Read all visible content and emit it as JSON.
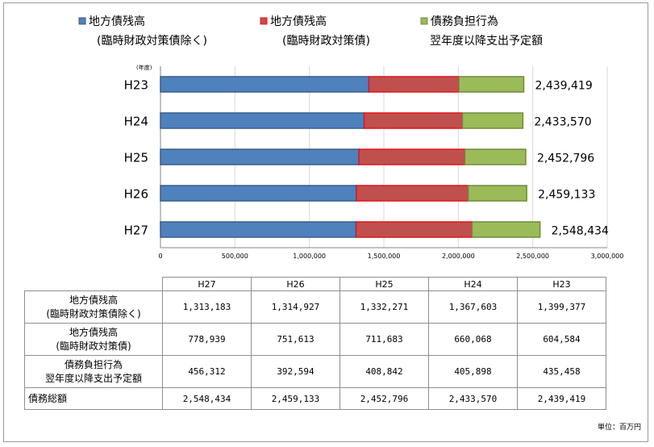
{
  "chart_data": {
    "type": "bar",
    "orientation": "horizontal",
    "stacked": true,
    "year_unit_label": "(年度)",
    "categories": [
      "H23",
      "H24",
      "H25",
      "H26",
      "H27"
    ],
    "series": [
      {
        "name_line1": "地方債残高",
        "name_line2": "(臨時財政対策債除く)",
        "color": "#4f81bd",
        "edge": "#385d8a",
        "values": [
          1399377,
          1367603,
          1332271,
          1314927,
          1313183
        ]
      },
      {
        "name_line1": "地方債残高",
        "name_line2": "(臨時財政対策債)",
        "color": "#c0504d",
        "edge": "#e0141b",
        "values": [
          604584,
          660068,
          711683,
          751613,
          778939
        ]
      },
      {
        "name_line1": "債務負担行為",
        "name_line2": "翌年度以降支出予定額",
        "color": "#9bbb59",
        "edge": "#71893f",
        "values": [
          435458,
          405898,
          408842,
          392594,
          456312
        ]
      }
    ],
    "totals": [
      "2,439,419",
      "2,433,570",
      "2,452,796",
      "2,459,133",
      "2,548,434"
    ],
    "xlim": [
      0,
      3000000
    ],
    "x_ticks": [
      "0",
      "500,000",
      "1,000,000",
      "1,500,000",
      "2,000,000",
      "2,500,000",
      "3,000,000"
    ],
    "grid": true,
    "legend_position": "top"
  },
  "table": {
    "headers": [
      "H27",
      "H26",
      "H25",
      "H24",
      "H23"
    ],
    "rows": [
      {
        "label_line1": "地方債残高",
        "label_line2": "(臨時財政対策債除く)",
        "values": [
          "1,313,183",
          "1,314,927",
          "1,332,271",
          "1,367,603",
          "1,399,377"
        ]
      },
      {
        "label_line1": "地方債残高",
        "label_line2": "(臨時財政対策債)",
        "values": [
          "778,939",
          "751,613",
          "711,683",
          "660,068",
          "604,584"
        ]
      },
      {
        "label_line1": "債務負担行為",
        "label_line2": "翌年度以降支出予定額",
        "values": [
          "456,312",
          "392,594",
          "408,842",
          "405,898",
          "435,458"
        ]
      }
    ],
    "total_row": {
      "label": "債務総額",
      "values": [
        "2,548,434",
        "2,459,133",
        "2,452,796",
        "2,433,570",
        "2,439,419"
      ]
    }
  },
  "unit_note": "単位：百万円"
}
